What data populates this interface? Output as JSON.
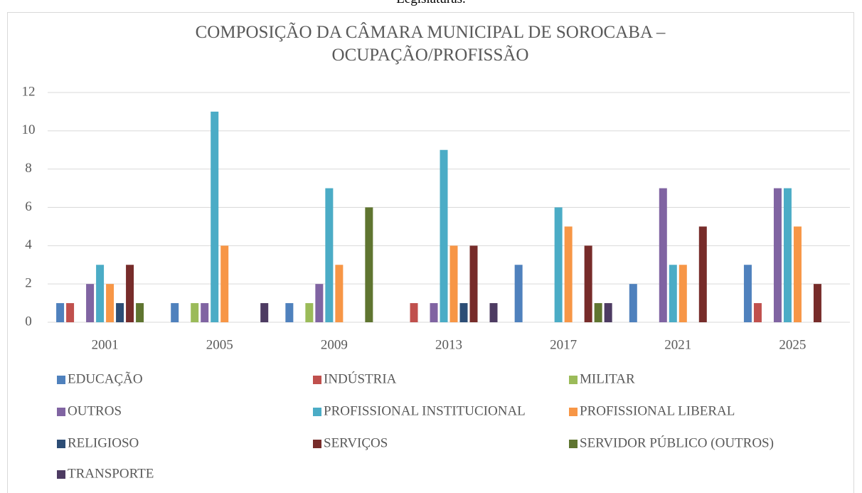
{
  "caption": "Legislaturas.",
  "chart_data": {
    "type": "bar",
    "title": "COMPOSIÇÃO DA CÂMARA MUNICIPAL DE SOROCABA – OCUPAÇÃO/PROFISSÃO",
    "categories": [
      "2001",
      "2005",
      "2009",
      "2013",
      "2017",
      "2021",
      "2025"
    ],
    "series": [
      {
        "name": "EDUCAÇÃO",
        "color": "#4f81bd",
        "values": [
          1,
          1,
          1,
          0,
          3,
          2,
          3
        ]
      },
      {
        "name": "INDÚSTRIA",
        "color": "#c0504d",
        "values": [
          1,
          0,
          0,
          1,
          0,
          0,
          1
        ]
      },
      {
        "name": "MILITAR",
        "color": "#9bbb59",
        "values": [
          0,
          1,
          1,
          0,
          0,
          0,
          0
        ]
      },
      {
        "name": "OUTROS",
        "color": "#8064a2",
        "values": [
          2,
          1,
          2,
          1,
          0,
          7,
          7
        ]
      },
      {
        "name": "PROFISSIONAL INSTITUCIONAL",
        "color": "#4bacc6",
        "values": [
          3,
          11,
          7,
          9,
          6,
          3,
          7
        ]
      },
      {
        "name": "PROFISSIONAL LIBERAL",
        "color": "#f79646",
        "values": [
          2,
          4,
          3,
          4,
          5,
          3,
          5
        ]
      },
      {
        "name": "RELIGIOSO",
        "color": "#2c4d75",
        "values": [
          1,
          0,
          0,
          1,
          0,
          0,
          0
        ]
      },
      {
        "name": "SERVIÇOS",
        "color": "#772c2a",
        "values": [
          3,
          0,
          0,
          4,
          4,
          5,
          2
        ]
      },
      {
        "name": "SERVIDOR PÚBLICO (OUTROS)",
        "color": "#5f7530",
        "values": [
          1,
          0,
          6,
          0,
          1,
          0,
          0
        ]
      },
      {
        "name": "TRANSPORTE",
        "color": "#4d3b62",
        "values": [
          0,
          1,
          0,
          1,
          1,
          0,
          0
        ]
      }
    ],
    "ylim": [
      0,
      12
    ],
    "yticks": [
      0,
      2,
      4,
      6,
      8,
      10,
      12
    ],
    "grid": true,
    "legend": "bottom"
  }
}
